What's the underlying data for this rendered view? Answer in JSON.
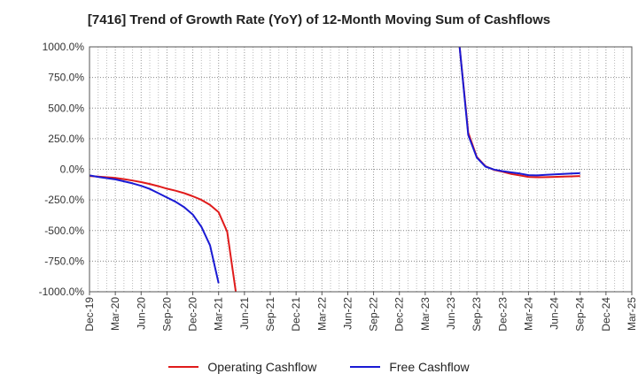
{
  "chart_data": {
    "type": "line",
    "title": "[7416]  Trend of Growth Rate (YoY) of 12-Month Moving Sum of Cashflows",
    "xlabel": "",
    "ylabel": "",
    "ylim": [
      -1000,
      1000
    ],
    "yticks": [
      1000,
      750,
      500,
      250,
      0,
      -250,
      -500,
      -750,
      -1000
    ],
    "ytick_labels": [
      "1000.0%",
      "750.0%",
      "500.0%",
      "250.0%",
      "0.0%",
      "-250.0%",
      "-500.0%",
      "-750.0%",
      "-1000.0%"
    ],
    "xtick_labels": [
      "Dec-19",
      "Mar-20",
      "Jun-20",
      "Sep-20",
      "Dec-20",
      "Mar-21",
      "Jun-21",
      "Sep-21",
      "Dec-21",
      "Mar-22",
      "Jun-22",
      "Sep-22",
      "Dec-22",
      "Mar-23",
      "Jun-23",
      "Sep-23",
      "Dec-23",
      "Mar-24",
      "Jun-24",
      "Sep-24",
      "Dec-24",
      "Mar-25"
    ],
    "grid": true,
    "legend_position": "bottom",
    "series": [
      {
        "name": "Operating Cashflow",
        "color": "#e01b1b",
        "segments": [
          [
            [
              "Dec-19",
              -55
            ],
            [
              "Jan-20",
              -60
            ],
            [
              "Feb-20",
              -65
            ],
            [
              "Mar-20",
              -70
            ],
            [
              "Apr-20",
              -80
            ],
            [
              "May-20",
              -92
            ],
            [
              "Jun-20",
              -105
            ],
            [
              "Jul-20",
              -120
            ],
            [
              "Aug-20",
              -138
            ],
            [
              "Sep-20",
              -158
            ],
            [
              "Oct-20",
              -175
            ],
            [
              "Nov-20",
              -195
            ],
            [
              "Dec-20",
              -220
            ],
            [
              "Jan-21",
              -250
            ],
            [
              "Feb-21",
              -290
            ],
            [
              "Mar-21",
              -350
            ],
            [
              "Apr-21",
              -510
            ],
            [
              "May-21",
              -1000
            ]
          ],
          [
            [
              "Jul-23",
              1000
            ],
            [
              "Aug-23",
              300
            ],
            [
              "Sep-23",
              100
            ],
            [
              "Oct-23",
              25
            ],
            [
              "Nov-23",
              -5
            ],
            [
              "Dec-23",
              -20
            ],
            [
              "Jan-24",
              -38
            ],
            [
              "Feb-24",
              -50
            ],
            [
              "Mar-24",
              -62
            ],
            [
              "Apr-24",
              -65
            ],
            [
              "May-24",
              -64
            ],
            [
              "Jun-24",
              -62
            ],
            [
              "Jul-24",
              -60
            ],
            [
              "Aug-24",
              -58
            ],
            [
              "Sep-24",
              -55
            ]
          ]
        ]
      },
      {
        "name": "Free Cashflow",
        "color": "#1a1ad4",
        "segments": [
          [
            [
              "Dec-19",
              -50
            ],
            [
              "Jan-20",
              -62
            ],
            [
              "Feb-20",
              -72
            ],
            [
              "Mar-20",
              -82
            ],
            [
              "Apr-20",
              -98
            ],
            [
              "May-20",
              -115
            ],
            [
              "Jun-20",
              -135
            ],
            [
              "Jul-20",
              -160
            ],
            [
              "Aug-20",
              -195
            ],
            [
              "Sep-20",
              -230
            ],
            [
              "Oct-20",
              -265
            ],
            [
              "Nov-20",
              -310
            ],
            [
              "Dec-20",
              -370
            ],
            [
              "Jan-21",
              -470
            ],
            [
              "Feb-21",
              -620
            ],
            [
              "Mar-21",
              -930
            ]
          ],
          [
            [
              "Jul-23",
              1000
            ],
            [
              "Aug-23",
              280
            ],
            [
              "Sep-23",
              95
            ],
            [
              "Oct-23",
              22
            ],
            [
              "Nov-23",
              -2
            ],
            [
              "Dec-23",
              -15
            ],
            [
              "Jan-24",
              -25
            ],
            [
              "Feb-24",
              -35
            ],
            [
              "Mar-24",
              -48
            ],
            [
              "Apr-24",
              -50
            ],
            [
              "May-24",
              -45
            ],
            [
              "Jun-24",
              -42
            ],
            [
              "Jul-24",
              -38
            ],
            [
              "Aug-24",
              -35
            ],
            [
              "Sep-24",
              -32
            ]
          ]
        ]
      }
    ]
  }
}
